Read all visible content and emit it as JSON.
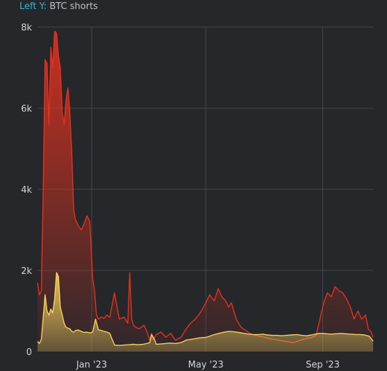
{
  "header": {
    "axis_prefix": "Left Y:",
    "axis_series": "BTC shorts"
  },
  "colors": {
    "background": "#25272b",
    "grid": "#44474d",
    "accent": "#36b6d6",
    "series_red": "#e8321e",
    "series_yellow": "#f4d35e"
  },
  "chart_data": {
    "type": "area",
    "title": "",
    "xlabel": "",
    "ylabel": "BTC shorts",
    "ylim": [
      0,
      8000
    ],
    "xlim": [
      "2022-11-05",
      "2023-10-24"
    ],
    "grid": true,
    "y_ticks": [
      {
        "value": 0,
        "label": "0"
      },
      {
        "value": 2000,
        "label": "2k"
      },
      {
        "value": 4000,
        "label": "4k"
      },
      {
        "value": 6000,
        "label": "6k"
      },
      {
        "value": 8000,
        "label": "8k"
      }
    ],
    "x_ticks": [
      {
        "value": "2023-01-01",
        "label": "Jan '23"
      },
      {
        "value": "2023-05-01",
        "label": "May '23"
      },
      {
        "value": "2023-09-01",
        "label": "Sep '23"
      }
    ],
    "series": [
      {
        "color": "#e8321e",
        "x": [
          "2022-11-05",
          "2022-11-07",
          "2022-11-09",
          "2022-11-11",
          "2022-11-13",
          "2022-11-15",
          "2022-11-17",
          "2022-11-19",
          "2022-11-21",
          "2022-11-23",
          "2022-11-25",
          "2022-11-27",
          "2022-11-29",
          "2022-12-01",
          "2022-12-03",
          "2022-12-05",
          "2022-12-07",
          "2022-12-09",
          "2022-12-11",
          "2022-12-13",
          "2022-12-15",
          "2022-12-18",
          "2022-12-21",
          "2022-12-24",
          "2022-12-27",
          "2022-12-30",
          "2023-01-02",
          "2023-01-04",
          "2023-01-06",
          "2023-01-08",
          "2023-01-11",
          "2023-01-14",
          "2023-01-17",
          "2023-01-20",
          "2023-01-25",
          "2023-01-30",
          "2023-02-04",
          "2023-02-08",
          "2023-02-10",
          "2023-02-12",
          "2023-02-14",
          "2023-02-16",
          "2023-02-20",
          "2023-02-25",
          "2023-02-28",
          "2023-03-03",
          "2023-03-05",
          "2023-03-07",
          "2023-03-10",
          "2023-03-15",
          "2023-03-20",
          "2023-03-25",
          "2023-03-30",
          "2023-04-05",
          "2023-04-10",
          "2023-04-15",
          "2023-04-20",
          "2023-04-25",
          "2023-05-01",
          "2023-05-05",
          "2023-05-10",
          "2023-05-14",
          "2023-05-18",
          "2023-05-22",
          "2023-05-25",
          "2023-05-28",
          "2023-06-02",
          "2023-06-07",
          "2023-06-12",
          "2023-06-17",
          "2023-06-22",
          "2023-06-27",
          "2023-07-02",
          "2023-07-07",
          "2023-07-12",
          "2023-07-17",
          "2023-07-22",
          "2023-07-27",
          "2023-08-01",
          "2023-08-06",
          "2023-08-11",
          "2023-08-16",
          "2023-08-21",
          "2023-08-25",
          "2023-08-29",
          "2023-09-02",
          "2023-09-06",
          "2023-09-10",
          "2023-09-14",
          "2023-09-18",
          "2023-09-22",
          "2023-09-26",
          "2023-09-30",
          "2023-10-04",
          "2023-10-08",
          "2023-10-12",
          "2023-10-16",
          "2023-10-19",
          "2023-10-22",
          "2023-10-24"
        ],
        "values": [
          1700,
          1400,
          1500,
          4000,
          7200,
          7100,
          5600,
          7500,
          7000,
          7900,
          7850,
          7300,
          7000,
          5900,
          5600,
          6200,
          6500,
          5900,
          4900,
          3500,
          3250,
          3100,
          3000,
          3150,
          3350,
          3200,
          1800,
          1500,
          900,
          800,
          850,
          820,
          900,
          850,
          1450,
          800,
          850,
          700,
          1950,
          800,
          650,
          600,
          560,
          650,
          500,
          280,
          450,
          300,
          420,
          480,
          350,
          450,
          280,
          350,
          550,
          700,
          800,
          950,
          1200,
          1400,
          1250,
          1550,
          1350,
          1250,
          1100,
          1200,
          800,
          600,
          520,
          440,
          400,
          380,
          350,
          320,
          300,
          280,
          260,
          240,
          220,
          260,
          300,
          330,
          350,
          400,
          800,
          1200,
          1450,
          1350,
          1600,
          1500,
          1450,
          1300,
          1100,
          800,
          1000,
          800,
          900,
          550,
          480,
          350
        ]
      },
      {
        "color": "#f4d35e",
        "x": [
          "2022-11-05",
          "2022-11-07",
          "2022-11-09",
          "2022-11-11",
          "2022-11-13",
          "2022-11-15",
          "2022-11-17",
          "2022-11-19",
          "2022-11-21",
          "2022-11-23",
          "2022-11-25",
          "2022-11-27",
          "2022-11-29",
          "2022-12-01",
          "2022-12-03",
          "2022-12-05",
          "2022-12-07",
          "2022-12-09",
          "2022-12-11",
          "2022-12-13",
          "2022-12-15",
          "2022-12-18",
          "2022-12-21",
          "2022-12-24",
          "2022-12-27",
          "2022-12-30",
          "2023-01-02",
          "2023-01-05",
          "2023-01-08",
          "2023-01-11",
          "2023-01-14",
          "2023-01-17",
          "2023-01-20",
          "2023-01-25",
          "2023-01-30",
          "2023-02-04",
          "2023-02-09",
          "2023-02-14",
          "2023-02-19",
          "2023-02-24",
          "2023-02-28",
          "2023-03-03",
          "2023-03-05",
          "2023-03-08",
          "2023-03-10",
          "2023-03-15",
          "2023-03-20",
          "2023-03-25",
          "2023-03-30",
          "2023-04-05",
          "2023-04-10",
          "2023-04-15",
          "2023-04-20",
          "2023-04-25",
          "2023-05-01",
          "2023-05-05",
          "2023-05-10",
          "2023-05-15",
          "2023-05-20",
          "2023-05-25",
          "2023-05-30",
          "2023-06-05",
          "2023-06-10",
          "2023-06-15",
          "2023-06-20",
          "2023-06-25",
          "2023-06-30",
          "2023-07-05",
          "2023-07-10",
          "2023-07-15",
          "2023-07-20",
          "2023-07-25",
          "2023-07-30",
          "2023-08-05",
          "2023-08-10",
          "2023-08-15",
          "2023-08-20",
          "2023-08-24",
          "2023-08-28",
          "2023-09-01",
          "2023-09-05",
          "2023-09-10",
          "2023-09-15",
          "2023-09-20",
          "2023-09-25",
          "2023-09-30",
          "2023-10-05",
          "2023-10-10",
          "2023-10-15",
          "2023-10-20",
          "2023-10-24"
        ],
        "values": [
          250,
          200,
          300,
          850,
          1400,
          1000,
          900,
          1050,
          950,
          1300,
          1950,
          1850,
          1100,
          900,
          700,
          600,
          580,
          560,
          500,
          480,
          520,
          530,
          500,
          470,
          480,
          460,
          480,
          800,
          540,
          520,
          500,
          480,
          450,
          160,
          150,
          160,
          170,
          180,
          170,
          180,
          200,
          220,
          420,
          300,
          180,
          190,
          200,
          210,
          200,
          220,
          280,
          300,
          320,
          340,
          350,
          380,
          420,
          450,
          480,
          500,
          490,
          470,
          450,
          430,
          420,
          420,
          430,
          410,
          400,
          400,
          390,
          400,
          410,
          420,
          400,
          390,
          410,
          430,
          450,
          450,
          440,
          430,
          440,
          450,
          440,
          430,
          420,
          420,
          410,
          380,
          260
        ]
      }
    ]
  }
}
